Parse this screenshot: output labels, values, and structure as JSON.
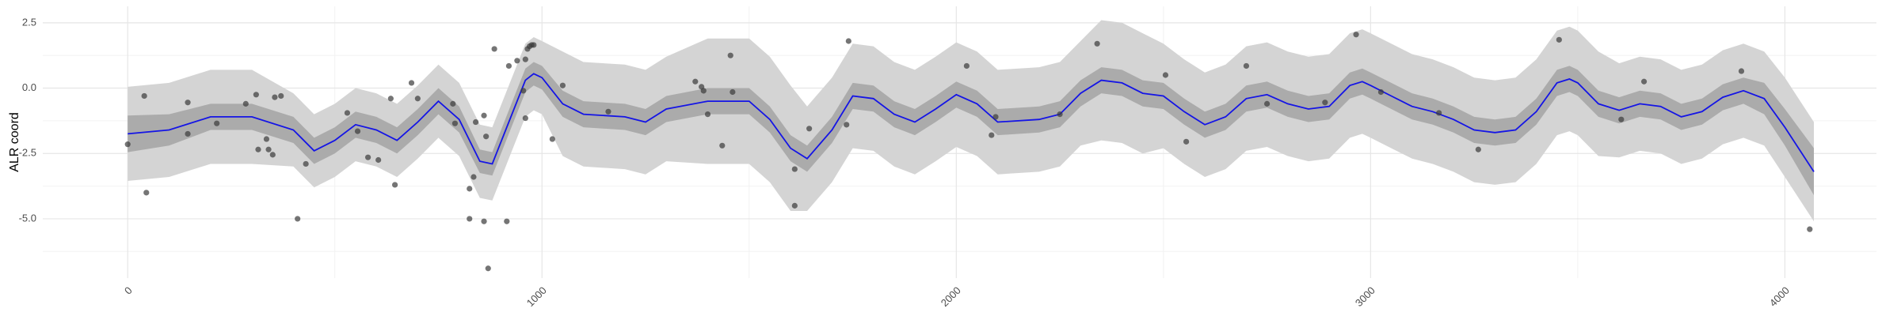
{
  "chart_data": {
    "type": "line",
    "y_label": "ALR coord",
    "xlim": [
      -205,
      4221
    ],
    "ylim": [
      -7.27,
      3.13
    ],
    "xticks": [
      0,
      1000,
      2000,
      3000,
      4000
    ],
    "yticks": [
      {
        "value": 2.5,
        "label": "2.5"
      },
      {
        "value": 0,
        "label": "0.0"
      },
      {
        "value": -2.5,
        "label": "-2.5"
      },
      {
        "value": -5,
        "label": "-5.0"
      }
    ],
    "xminor": [
      500,
      1500,
      2500,
      3500
    ],
    "yminor": [
      1.25,
      -1.25,
      -3.75,
      -6.25
    ],
    "grid": true,
    "x": [
      0,
      100,
      200,
      300,
      400,
      450,
      500,
      550,
      600,
      650,
      700,
      750,
      800,
      850,
      880,
      920,
      960,
      980,
      1000,
      1050,
      1100,
      1200,
      1250,
      1300,
      1400,
      1500,
      1550,
      1600,
      1640,
      1700,
      1750,
      1800,
      1850,
      1900,
      1950,
      2000,
      2050,
      2100,
      2200,
      2250,
      2300,
      2350,
      2400,
      2450,
      2500,
      2550,
      2600,
      2650,
      2700,
      2750,
      2800,
      2850,
      2900,
      2950,
      2980,
      3000,
      3050,
      3100,
      3150,
      3200,
      3250,
      3300,
      3350,
      3400,
      3450,
      3480,
      3500,
      3550,
      3600,
      3650,
      3700,
      3750,
      3800,
      3850,
      3900,
      3950,
      4000,
      4070
    ],
    "ribbons": [
      {
        "color": "#d4d4d4",
        "upper": [
          0.05,
          0.2,
          0.7,
          0.7,
          -0.2,
          -1.0,
          -0.6,
          0.0,
          -0.2,
          -0.6,
          0.1,
          0.9,
          0.2,
          -1.4,
          -1.5,
          0.1,
          1.7,
          1.95,
          1.8,
          1.4,
          1.0,
          0.9,
          0.7,
          1.2,
          1.9,
          1.9,
          1.2,
          0.1,
          -0.7,
          0.4,
          1.7,
          1.6,
          1.0,
          0.7,
          1.2,
          1.75,
          1.4,
          0.7,
          0.8,
          1.0,
          1.8,
          2.6,
          2.5,
          2.1,
          1.7,
          1.1,
          0.6,
          0.9,
          1.6,
          1.75,
          1.4,
          1.2,
          1.3,
          2.1,
          2.25,
          2.1,
          1.7,
          1.3,
          1.1,
          0.8,
          0.4,
          0.3,
          0.4,
          1.1,
          2.2,
          2.35,
          2.2,
          1.4,
          0.95,
          1.2,
          1.1,
          0.7,
          0.9,
          1.45,
          1.7,
          1.4,
          0.4,
          -1.3
        ],
        "lower": [
          -3.55,
          -3.4,
          -2.9,
          -2.9,
          -3.0,
          -3.8,
          -3.4,
          -2.8,
          -3.0,
          -3.4,
          -2.7,
          -1.9,
          -2.6,
          -4.2,
          -4.3,
          -2.7,
          -1.1,
          -0.85,
          -1.0,
          -2.6,
          -3.0,
          -3.1,
          -3.3,
          -2.8,
          -2.9,
          -2.9,
          -3.6,
          -4.7,
          -4.7,
          -3.6,
          -2.3,
          -2.4,
          -3.0,
          -3.3,
          -2.8,
          -2.25,
          -2.6,
          -3.3,
          -3.2,
          -3.0,
          -2.2,
          -2.0,
          -2.1,
          -2.5,
          -2.3,
          -2.9,
          -3.4,
          -3.1,
          -2.4,
          -2.25,
          -2.6,
          -2.8,
          -2.7,
          -1.9,
          -1.75,
          -1.9,
          -2.3,
          -2.7,
          -2.9,
          -3.2,
          -3.6,
          -3.7,
          -3.6,
          -2.9,
          -1.8,
          -1.65,
          -1.8,
          -2.6,
          -2.65,
          -2.4,
          -2.5,
          -2.9,
          -2.7,
          -2.15,
          -1.9,
          -2.2,
          -3.4,
          -5.1
        ]
      },
      {
        "color": "#ababab",
        "upper": [
          -1.05,
          -1.0,
          -0.6,
          -0.6,
          -1.1,
          -1.9,
          -1.5,
          -0.9,
          -1.1,
          -1.5,
          -0.8,
          0.0,
          -0.7,
          -2.35,
          -2.45,
          -0.85,
          0.75,
          1.0,
          0.85,
          -0.1,
          -0.5,
          -0.6,
          -0.8,
          -0.3,
          0.0,
          0.0,
          -0.7,
          -1.8,
          -2.2,
          -1.1,
          0.2,
          0.1,
          -0.5,
          -0.8,
          -0.3,
          0.25,
          -0.1,
          -0.8,
          -0.7,
          -0.5,
          0.3,
          0.8,
          0.7,
          0.3,
          0.2,
          -0.4,
          -0.9,
          -0.6,
          0.1,
          0.25,
          -0.1,
          -0.3,
          -0.2,
          0.6,
          0.75,
          0.6,
          0.2,
          -0.2,
          -0.4,
          -0.7,
          -1.1,
          -1.2,
          -1.1,
          -0.4,
          0.7,
          0.85,
          0.7,
          -0.1,
          -0.35,
          -0.1,
          -0.2,
          -0.6,
          -0.4,
          0.15,
          0.4,
          0.2,
          -0.8,
          -2.3
        ],
        "lower": [
          -2.45,
          -2.2,
          -1.6,
          -1.6,
          -2.1,
          -2.9,
          -2.5,
          -1.9,
          -2.1,
          -2.5,
          -1.8,
          -1.0,
          -1.7,
          -3.25,
          -3.35,
          -1.75,
          -0.15,
          0.1,
          -0.05,
          -1.1,
          -1.5,
          -1.6,
          -1.8,
          -1.3,
          -1.0,
          -1.0,
          -1.7,
          -2.8,
          -3.2,
          -2.1,
          -0.8,
          -0.9,
          -1.5,
          -1.8,
          -1.3,
          -0.75,
          -1.1,
          -1.8,
          -1.7,
          -1.5,
          -0.7,
          -0.2,
          -0.3,
          -0.7,
          -0.8,
          -1.4,
          -1.9,
          -1.6,
          -0.9,
          -0.75,
          -1.1,
          -1.3,
          -1.2,
          -0.4,
          -0.25,
          -0.4,
          -0.8,
          -1.2,
          -1.4,
          -1.7,
          -2.1,
          -2.2,
          -2.1,
          -1.4,
          -0.3,
          -0.15,
          -0.3,
          -1.1,
          -1.35,
          -1.1,
          -1.2,
          -1.6,
          -1.4,
          -0.85,
          -0.6,
          -1.0,
          -2.2,
          -4.1
        ]
      }
    ],
    "series": [
      {
        "color": "#1414e6",
        "values": [
          -1.75,
          -1.6,
          -1.1,
          -1.1,
          -1.6,
          -2.4,
          -2.0,
          -1.4,
          -1.6,
          -2.0,
          -1.3,
          -0.5,
          -1.2,
          -2.8,
          -2.9,
          -1.3,
          0.3,
          0.55,
          0.4,
          -0.6,
          -1.0,
          -1.1,
          -1.3,
          -0.8,
          -0.5,
          -0.5,
          -1.2,
          -2.3,
          -2.7,
          -1.6,
          -0.3,
          -0.4,
          -1.0,
          -1.3,
          -0.8,
          -0.25,
          -0.6,
          -1.3,
          -1.2,
          -1.0,
          -0.2,
          0.3,
          0.2,
          -0.2,
          -0.3,
          -0.9,
          -1.4,
          -1.1,
          -0.4,
          -0.25,
          -0.6,
          -0.8,
          -0.7,
          0.1,
          0.25,
          0.1,
          -0.3,
          -0.7,
          -0.9,
          -1.2,
          -1.6,
          -1.7,
          -1.6,
          -0.9,
          0.2,
          0.35,
          0.2,
          -0.6,
          -0.85,
          -0.6,
          -0.7,
          -1.1,
          -0.9,
          -0.35,
          -0.1,
          -0.4,
          -1.5,
          -3.2
        ]
      }
    ],
    "points": {
      "color": "#3a3a3a",
      "x": [
        0,
        40,
        45,
        145,
        145,
        215,
        285,
        310,
        315,
        335,
        340,
        350,
        355,
        370,
        410,
        430,
        530,
        555,
        580,
        605,
        635,
        645,
        685,
        700,
        785,
        790,
        825,
        825,
        835,
        840,
        860,
        860,
        865,
        870,
        885,
        915,
        920,
        940,
        955,
        960,
        960,
        965,
        970,
        975,
        980,
        1025,
        1050,
        1160,
        1370,
        1385,
        1390,
        1400,
        1435,
        1455,
        1460,
        1610,
        1610,
        1645,
        1735,
        1740,
        2025,
        2085,
        2095,
        2250,
        2340,
        2505,
        2555,
        2700,
        2750,
        2890,
        2965,
        3025,
        3165,
        3260,
        3455,
        3605,
        3660,
        3895,
        4060
      ],
      "y": [
        -2.15,
        -0.3,
        -4.0,
        -0.55,
        -1.75,
        -1.35,
        -0.6,
        -0.25,
        -2.35,
        -1.95,
        -2.35,
        -2.55,
        -0.35,
        -0.3,
        -5.0,
        -2.9,
        -0.95,
        -1.65,
        -2.65,
        -2.75,
        -0.4,
        -3.7,
        0.2,
        -0.4,
        -0.6,
        -1.35,
        -5.0,
        -3.85,
        -3.4,
        -1.3,
        -5.1,
        -1.05,
        -1.85,
        -6.9,
        1.5,
        -5.1,
        0.85,
        1.05,
        -0.1,
        -1.15,
        1.1,
        1.5,
        1.6,
        1.65,
        1.65,
        -1.95,
        0.1,
        -0.9,
        0.25,
        0.05,
        -0.1,
        -1.0,
        -2.2,
        1.25,
        -0.15,
        -3.1,
        -4.5,
        -1.55,
        -1.4,
        1.8,
        0.85,
        -1.8,
        -1.1,
        -1.0,
        1.7,
        0.5,
        -2.05,
        0.85,
        -0.6,
        -0.55,
        2.05,
        -0.15,
        -0.95,
        -2.35,
        1.85,
        -1.2,
        0.25,
        0.65,
        -5.4
      ]
    }
  }
}
